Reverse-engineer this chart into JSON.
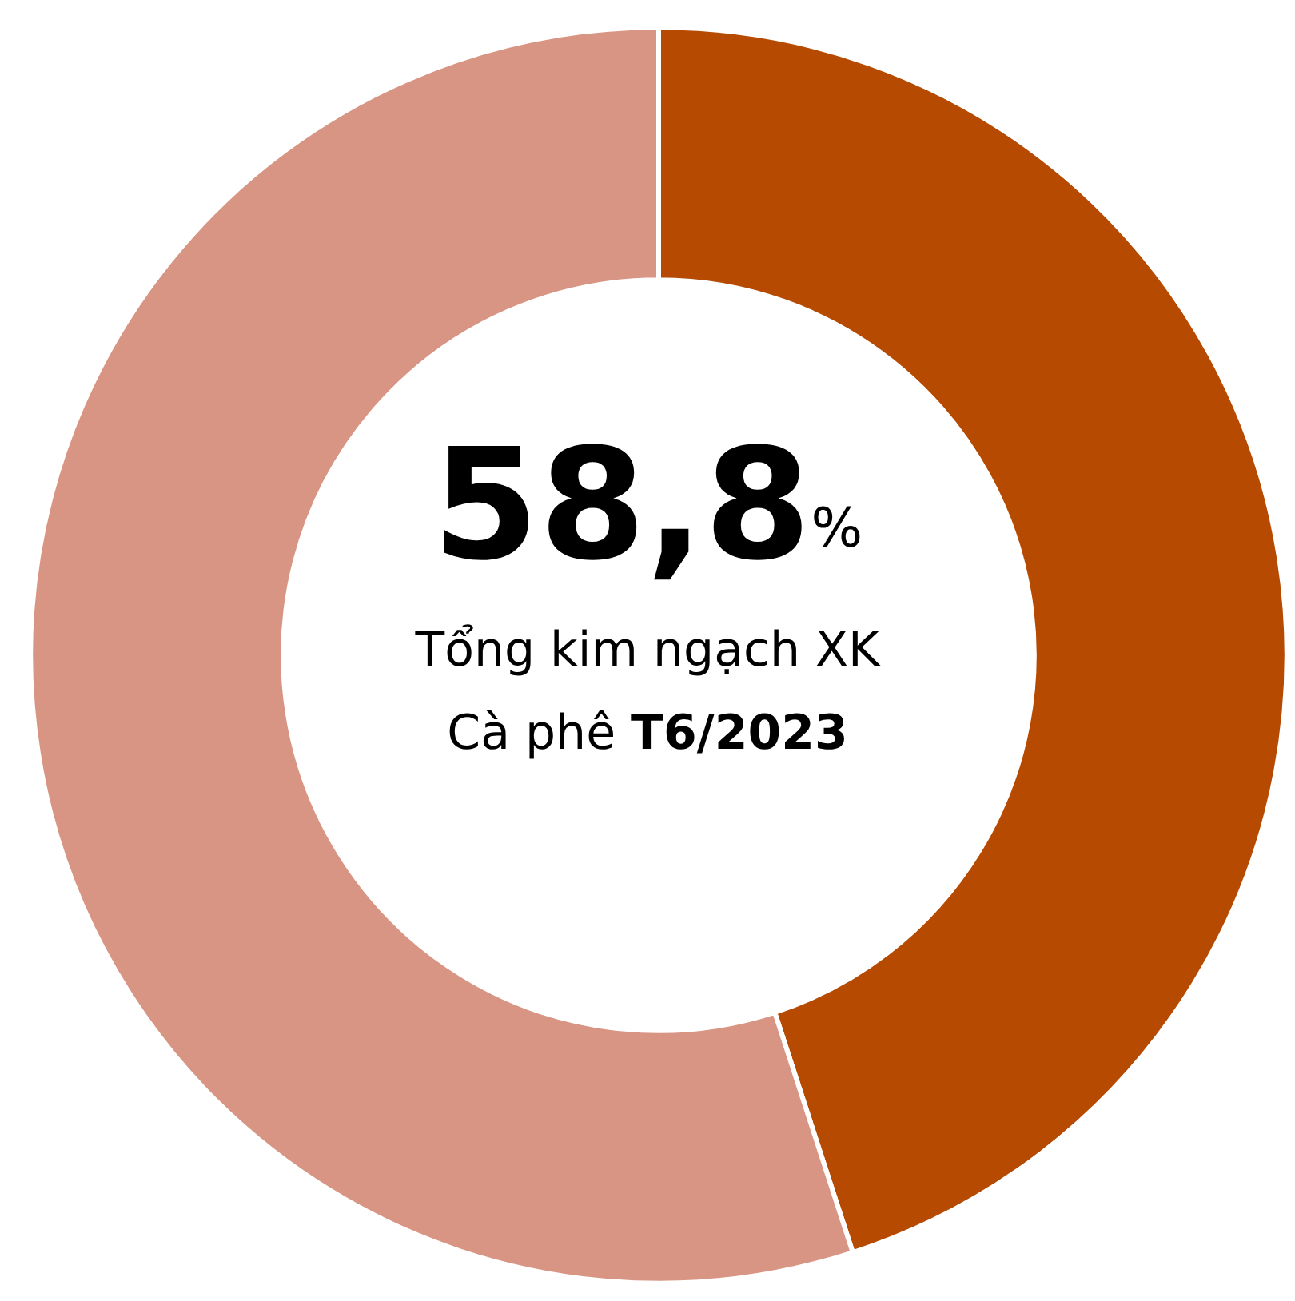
{
  "chart_data": {
    "type": "donut",
    "categories": [
      null,
      null
    ],
    "values": [
      45,
      55
    ],
    "colors": [
      "#b54a00",
      "#d99583"
    ],
    "annotations": [
      "58,8%",
      "Tổng kim ngạch XK",
      "Cà phê T6/2023"
    ]
  }
}
